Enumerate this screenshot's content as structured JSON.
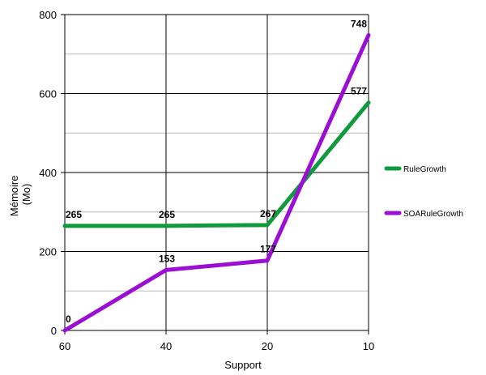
{
  "chart_data": {
    "type": "line",
    "title": "",
    "xlabel": "Support",
    "ylabel": [
      "Mémoire",
      "(Mo)"
    ],
    "x": [
      "60",
      "40",
      "20",
      "10"
    ],
    "yticks": [
      "0",
      "200",
      "400",
      "600",
      "800"
    ],
    "ylim": [
      0,
      800
    ],
    "grid": true,
    "legend": "right",
    "series": [
      {
        "name": "RuleGrowth",
        "color": "#0f9a3c",
        "values": [
          265,
          265,
          267,
          577
        ],
        "labels": [
          "265",
          "265",
          "267",
          "577"
        ]
      },
      {
        "name": "SOARuleGrowth",
        "color": "#9b0fd4",
        "values": [
          0,
          153,
          177,
          748
        ],
        "labels": [
          "0",
          "153",
          "177",
          "748"
        ]
      }
    ]
  }
}
